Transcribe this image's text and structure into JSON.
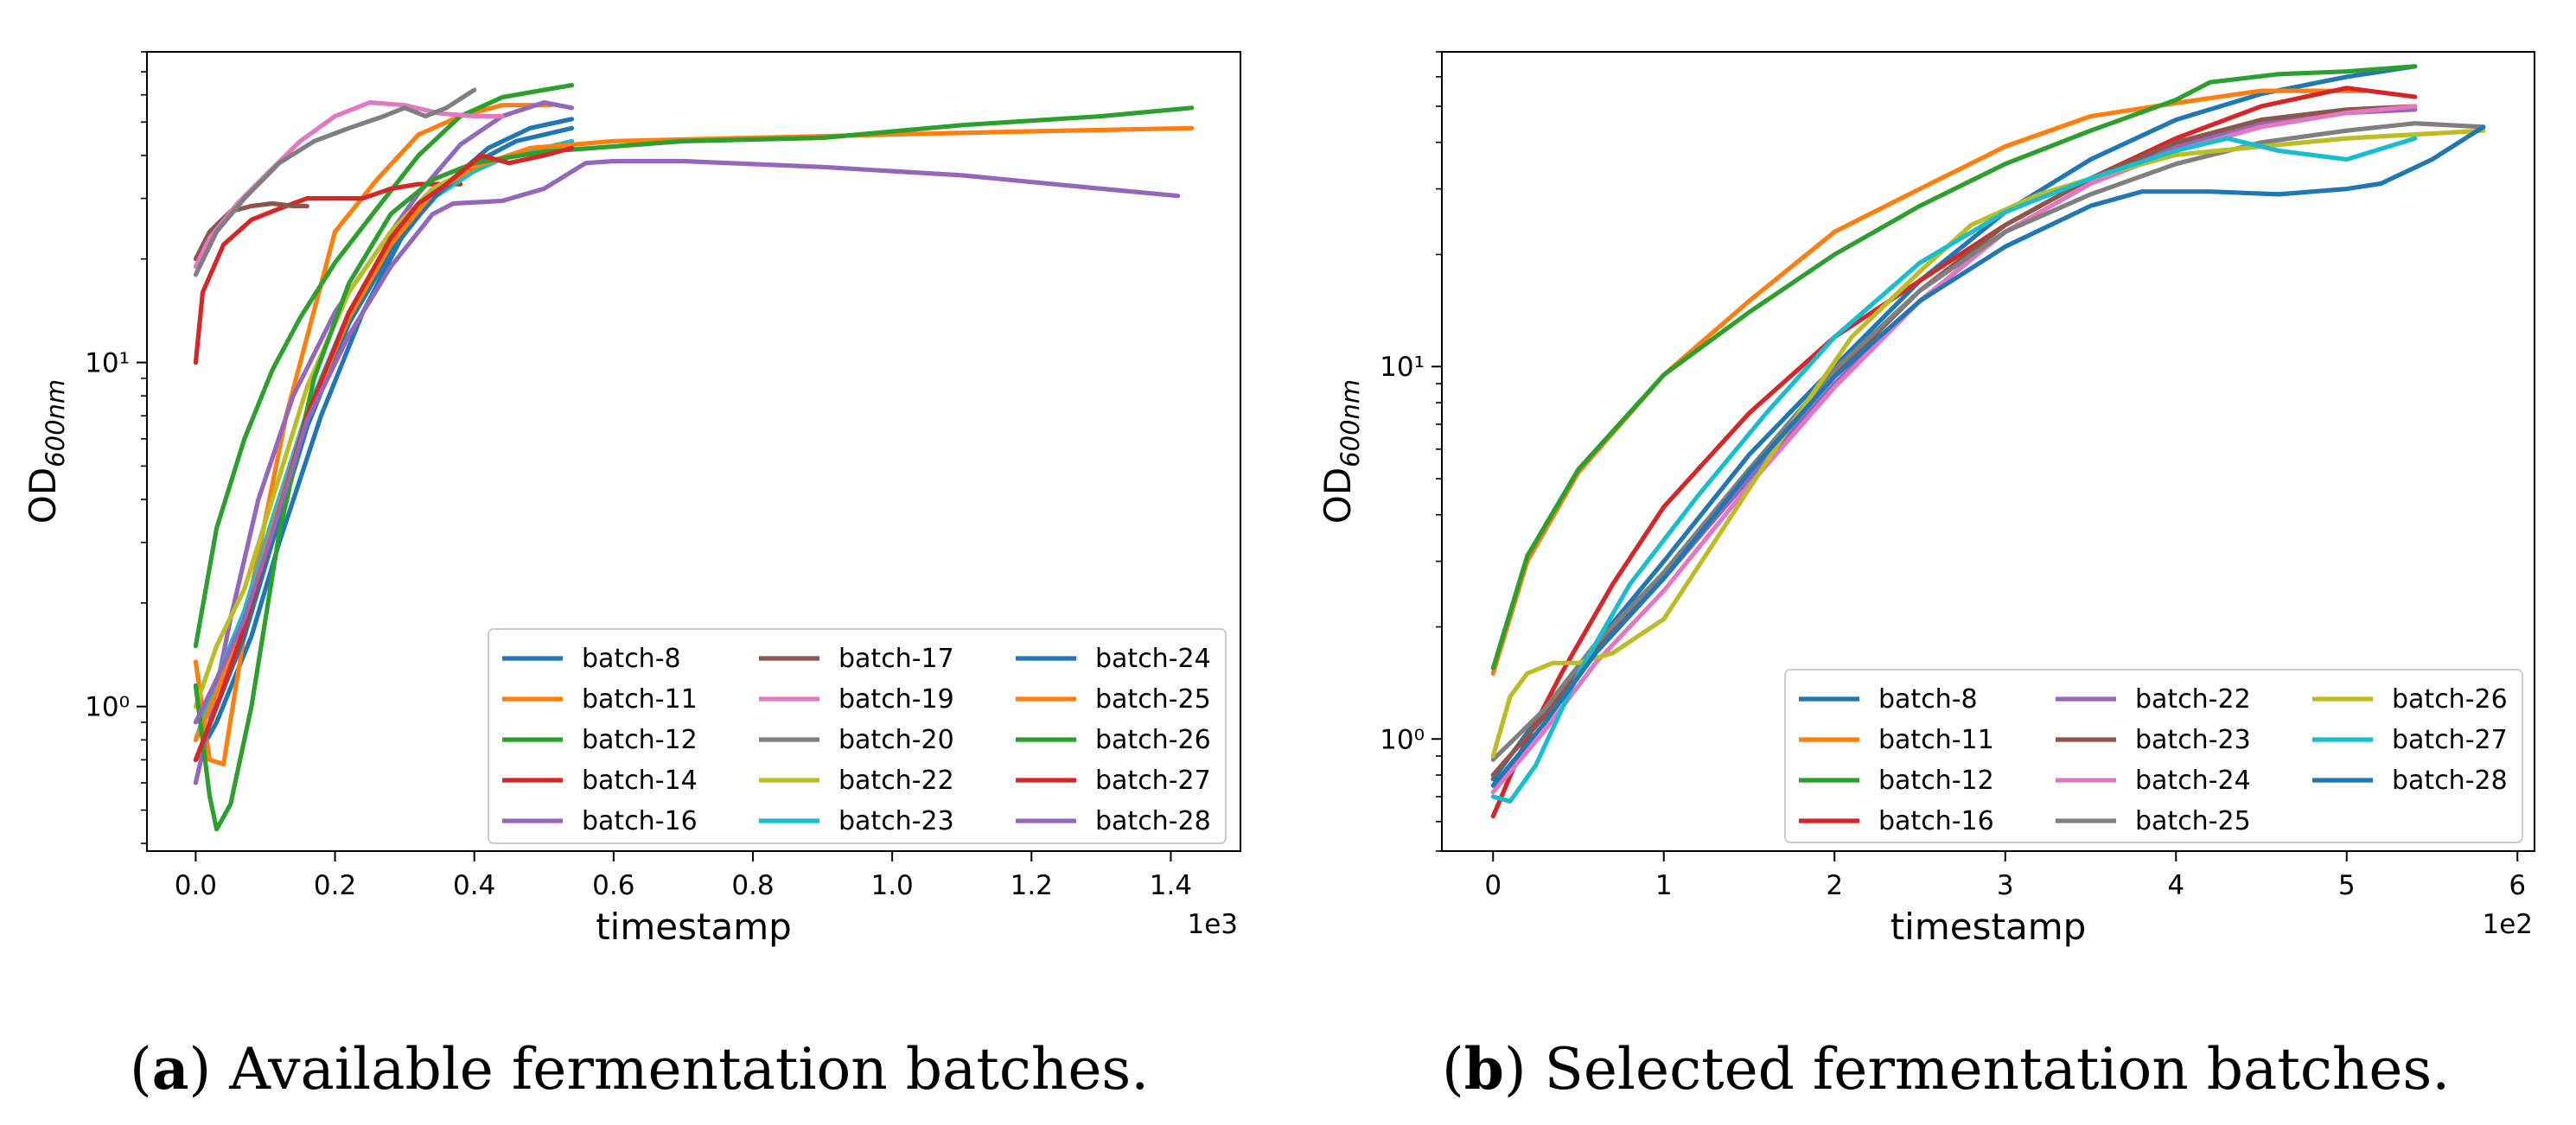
{
  "colors": {
    "blue": "#1f77b4",
    "orange": "#ff7f0e",
    "green": "#2ca02c",
    "red": "#d62728",
    "purple": "#9467bd",
    "brown": "#8c564b",
    "pink": "#e377c2",
    "gray": "#7f7f7f",
    "olive": "#bcbd22",
    "cyan": "#17becf"
  },
  "chart_data": [
    {
      "type": "line",
      "panel_letter": "a",
      "caption": "Available fermentation batches.",
      "caption_open": "(",
      "caption_close": ")",
      "xlabel": "timestamp",
      "ylabel_main": "OD",
      "ylabel_sub": "600nm",
      "x_offset_label": "1e3",
      "xlim": [
        -0.07,
        1.5
      ],
      "ylim": [
        0.38,
        80
      ],
      "yscale": "log",
      "x_ticks": [
        0.0,
        0.2,
        0.4,
        0.6,
        0.8,
        1.0,
        1.2,
        1.4
      ],
      "x_tick_labels": [
        "0.0",
        "0.2",
        "0.4",
        "0.6",
        "0.8",
        "1.0",
        "1.2",
        "1.4"
      ],
      "y_major_ticks": [
        1,
        10
      ],
      "y_tick_labels": [
        "10⁰",
        "10¹"
      ],
      "legend_position": "lower-right",
      "legend_columns": 3,
      "series": [
        {
          "name": "batch-8",
          "color": "#1f77b4",
          "x": [
            0,
            0.03,
            0.08,
            0.12,
            0.18,
            0.24,
            0.3,
            0.36,
            0.42,
            0.48,
            0.54
          ],
          "y": [
            0.7,
            0.9,
            1.6,
            3.0,
            7.0,
            14,
            24,
            33,
            42,
            48,
            51
          ]
        },
        {
          "name": "batch-11",
          "color": "#ff7f0e",
          "x": [
            0,
            0.02,
            0.04,
            0.08,
            0.13,
            0.2,
            0.26,
            0.32,
            0.38,
            0.44,
            0.51
          ],
          "y": [
            1.35,
            0.7,
            0.68,
            2.2,
            7.0,
            24,
            34,
            46,
            52,
            56,
            56
          ]
        },
        {
          "name": "batch-12",
          "color": "#2ca02c",
          "x": [
            0,
            0.03,
            0.07,
            0.11,
            0.15,
            0.2,
            0.26,
            0.32,
            0.38,
            0.44,
            0.5,
            0.54
          ],
          "y": [
            1.5,
            3.3,
            6.0,
            9.5,
            13.5,
            19.5,
            28,
            40,
            52,
            59,
            62,
            64
          ]
        },
        {
          "name": "batch-14",
          "color": "#d62728",
          "x": [
            0,
            0.01,
            0.04,
            0.08,
            0.12,
            0.16,
            0.2,
            0.24,
            0.28,
            0.32,
            0.38
          ],
          "y": [
            10,
            16,
            22,
            26,
            28,
            30,
            30,
            30,
            32,
            33,
            33
          ]
        },
        {
          "name": "batch-16",
          "color": "#9467bd",
          "x": [
            0,
            0.02,
            0.05,
            0.09,
            0.14,
            0.2,
            0.26,
            0.32,
            0.38,
            0.44,
            0.5,
            0.54
          ],
          "y": [
            0.6,
            0.9,
            1.8,
            4.0,
            8.0,
            14,
            21,
            31,
            43,
            52,
            57,
            55
          ]
        },
        {
          "name": "batch-17",
          "color": "#8c564b",
          "x": [
            0,
            0.02,
            0.05,
            0.08,
            0.11,
            0.14,
            0.16
          ],
          "y": [
            20,
            24,
            27.5,
            28.5,
            29,
            28.5,
            28.5
          ]
        },
        {
          "name": "batch-19",
          "color": "#e377c2",
          "x": [
            0.0,
            0.02,
            0.06,
            0.1,
            0.15,
            0.2,
            0.25,
            0.3,
            0.35,
            0.4,
            0.44
          ],
          "y": [
            19,
            23,
            29,
            35,
            44,
            52,
            57,
            56,
            53,
            52,
            52
          ]
        },
        {
          "name": "batch-20",
          "color": "#7f7f7f",
          "x": [
            0.0,
            0.03,
            0.07,
            0.12,
            0.17,
            0.22,
            0.27,
            0.3,
            0.33,
            0.36,
            0.4
          ],
          "y": [
            18,
            24,
            30,
            38,
            44,
            48,
            52,
            55,
            52,
            55,
            62
          ]
        },
        {
          "name": "batch-22",
          "color": "#bcbd22",
          "x": [
            0,
            0.03,
            0.07,
            0.11,
            0.16,
            0.22,
            0.28,
            0.34,
            0.4,
            0.45,
            0.5,
            0.54
          ],
          "y": [
            1.0,
            1.5,
            2.2,
            4.0,
            8.5,
            16,
            24,
            32,
            37,
            40,
            42,
            43
          ]
        },
        {
          "name": "batch-23",
          "color": "#17becf",
          "x": [
            0,
            0.03,
            0.07,
            0.11,
            0.16,
            0.22,
            0.28,
            0.34,
            0.4,
            0.45,
            0.5,
            0.54
          ],
          "y": [
            0.8,
            1.2,
            1.9,
            3.5,
            7.2,
            14,
            22,
            30,
            36,
            40,
            42,
            44
          ]
        },
        {
          "name": "batch-24",
          "color": "#1f77b4",
          "x": [
            0,
            0.03,
            0.07,
            0.11,
            0.16,
            0.22,
            0.28,
            0.34,
            0.4,
            0.46,
            0.54
          ],
          "y": [
            0.7,
            1.0,
            1.6,
            3.0,
            6.5,
            13,
            21,
            30,
            38,
            44,
            48
          ]
        },
        {
          "name": "batch-25",
          "color": "#ff7f0e",
          "x": [
            0,
            0.03,
            0.07,
            0.11,
            0.16,
            0.22,
            0.28,
            0.34,
            0.4,
            0.48,
            0.6,
            0.8,
            1.0,
            1.2,
            1.43
          ],
          "y": [
            0.8,
            1.1,
            1.8,
            3.3,
            7.0,
            13.5,
            22,
            31,
            37,
            42,
            44,
            45,
            46,
            47,
            48
          ]
        },
        {
          "name": "batch-26",
          "color": "#2ca02c",
          "x": [
            0,
            0.02,
            0.03,
            0.05,
            0.08,
            0.12,
            0.17,
            0.22,
            0.28,
            0.34,
            0.4,
            0.5,
            0.7,
            0.9,
            1.1,
            1.3,
            1.43
          ],
          "y": [
            1.15,
            0.55,
            0.44,
            0.52,
            1.0,
            3.2,
            9,
            17,
            27,
            34,
            38,
            41,
            44,
            45,
            49,
            52,
            55
          ]
        },
        {
          "name": "batch-27",
          "color": "#d62728",
          "x": [
            0,
            0.03,
            0.07,
            0.11,
            0.16,
            0.22,
            0.28,
            0.32,
            0.36,
            0.41,
            0.45,
            0.5,
            0.54
          ],
          "y": [
            0.7,
            1.0,
            1.7,
            3.2,
            7.0,
            14,
            23,
            29,
            33,
            40,
            38,
            40,
            42
          ]
        },
        {
          "name": "batch-28",
          "color": "#9467bd",
          "x": [
            0,
            0.03,
            0.07,
            0.11,
            0.16,
            0.22,
            0.28,
            0.34,
            0.37,
            0.44,
            0.5,
            0.56,
            0.6,
            0.7,
            0.9,
            1.1,
            1.3,
            1.41
          ],
          "y": [
            0.9,
            1.2,
            1.8,
            3.2,
            6.8,
            12,
            19,
            27,
            29,
            29.5,
            32,
            38,
            38.5,
            38.5,
            37,
            35,
            32,
            30.5
          ]
        }
      ]
    },
    {
      "type": "line",
      "panel_letter": "b",
      "caption": "Selected fermentation batches.",
      "caption_open": "(",
      "caption_close": ")",
      "xlabel": "timestamp",
      "ylabel_main": "OD",
      "ylabel_sub": "600nm",
      "x_offset_label": "1e2",
      "xlim": [
        -0.3,
        6.1
      ],
      "ylim": [
        0.5,
        70
      ],
      "yscale": "log",
      "x_ticks": [
        0,
        1,
        2,
        3,
        4,
        5,
        6
      ],
      "x_tick_labels": [
        "0",
        "1",
        "2",
        "3",
        "4",
        "5",
        "6"
      ],
      "y_major_ticks": [
        1,
        10
      ],
      "y_tick_labels": [
        "10⁰",
        "10¹"
      ],
      "legend_position": "lower-right",
      "legend_columns": 3,
      "series": [
        {
          "name": "batch-8",
          "color": "#1f77b4",
          "x": [
            0,
            0.3,
            0.6,
            1.0,
            1.5,
            2.0,
            2.5,
            3.0,
            3.5,
            4.0,
            4.5,
            5.0,
            5.4
          ],
          "y": [
            0.78,
            1.2,
            1.8,
            3.0,
            5.8,
            10,
            17,
            26,
            36,
            46,
            54,
            60,
            64
          ]
        },
        {
          "name": "batch-11",
          "color": "#ff7f0e",
          "x": [
            0,
            0.2,
            0.5,
            1.0,
            1.5,
            2.0,
            2.5,
            3.0,
            3.5,
            4.0,
            4.5,
            5.0,
            5.1
          ],
          "y": [
            1.5,
            3.0,
            5.2,
            9.5,
            15,
            23,
            30,
            39,
            47,
            51,
            55,
            55,
            55
          ]
        },
        {
          "name": "batch-12",
          "color": "#2ca02c",
          "x": [
            0,
            0.2,
            0.5,
            1.0,
            1.5,
            2.0,
            2.5,
            3.0,
            3.5,
            4.0,
            4.2,
            4.6,
            5.0,
            5.4
          ],
          "y": [
            1.55,
            3.1,
            5.3,
            9.5,
            14,
            20,
            27,
            35,
            43,
            52,
            58,
            61,
            62,
            64
          ]
        },
        {
          "name": "batch-16",
          "color": "#d62728",
          "x": [
            0,
            0.15,
            0.4,
            0.7,
            1.0,
            1.5,
            2.0,
            2.5,
            3.0,
            3.5,
            4.0,
            4.5,
            5.0,
            5.4
          ],
          "y": [
            0.62,
            0.9,
            1.5,
            2.6,
            4.2,
            7.5,
            12,
            17,
            24,
            32,
            41,
            50,
            56,
            53
          ]
        },
        {
          "name": "batch-22",
          "color": "#9467bd",
          "x": [
            0,
            0.3,
            0.6,
            1.0,
            1.5,
            2.0,
            2.5,
            3.0,
            3.5,
            4.0,
            4.5,
            5.0,
            5.4
          ],
          "y": [
            0.8,
            1.15,
            1.7,
            2.7,
            5.0,
            9,
            15,
            23,
            31,
            39,
            45,
            48,
            49
          ]
        },
        {
          "name": "batch-23",
          "color": "#8c564b",
          "x": [
            0,
            0.3,
            0.6,
            1.0,
            1.5,
            2.0,
            2.5,
            3.0,
            3.5,
            4.0,
            4.5,
            5.0,
            5.4
          ],
          "y": [
            0.8,
            1.15,
            1.75,
            2.8,
            5.3,
            9.5,
            16,
            24,
            32,
            40,
            46,
            49,
            50
          ]
        },
        {
          "name": "batch-24",
          "color": "#e377c2",
          "x": [
            0,
            0.3,
            0.6,
            1.0,
            1.5,
            2.0,
            2.5,
            3.0,
            3.5,
            4.0,
            4.5,
            5.0,
            5.4
          ],
          "y": [
            0.72,
            1.05,
            1.6,
            2.5,
            4.8,
            8.8,
            15,
            23,
            31,
            38,
            44,
            48,
            50
          ]
        },
        {
          "name": "batch-25",
          "color": "#7f7f7f",
          "x": [
            0,
            0.3,
            0.6,
            1.0,
            1.5,
            2.0,
            2.5,
            3.0,
            3.5,
            4.0,
            4.5,
            5.0,
            5.4,
            5.8
          ],
          "y": [
            0.88,
            1.2,
            1.8,
            2.8,
            5.3,
            9.8,
            16,
            23,
            29,
            35,
            40,
            43,
            45,
            44
          ]
        },
        {
          "name": "batch-26",
          "color": "#bcbd22",
          "x": [
            0,
            0.1,
            0.2,
            0.35,
            0.5,
            0.7,
            1.0,
            1.3,
            1.7,
            2.1,
            2.5,
            2.8,
            3.2,
            3.6,
            4.0,
            4.5,
            5.0,
            5.4,
            5.8
          ],
          "y": [
            0.9,
            1.3,
            1.5,
            1.6,
            1.6,
            1.7,
            2.1,
            3.4,
            6.5,
            12,
            18,
            24,
            29,
            33,
            37,
            39,
            41,
            42,
            43
          ]
        },
        {
          "name": "batch-27",
          "color": "#17becf",
          "x": [
            0,
            0.1,
            0.25,
            0.5,
            0.8,
            1.2,
            1.6,
            2.0,
            2.5,
            3.0,
            3.5,
            4.0,
            4.3,
            4.6,
            5.0,
            5.4
          ],
          "y": [
            0.7,
            0.68,
            0.85,
            1.5,
            2.6,
            4.5,
            7.5,
            12,
            19,
            26,
            32,
            38,
            41,
            38,
            36,
            41
          ]
        },
        {
          "name": "batch-28",
          "color": "#1f77b4",
          "x": [
            0,
            0.3,
            0.6,
            1.0,
            1.5,
            2.0,
            2.5,
            3.0,
            3.5,
            3.8,
            4.2,
            4.6,
            5.0,
            5.2,
            5.5,
            5.8
          ],
          "y": [
            0.75,
            1.1,
            1.7,
            2.7,
            5.2,
            9.4,
            15,
            21,
            27,
            29.5,
            29.5,
            29,
            30,
            31,
            36,
            44
          ]
        }
      ]
    }
  ]
}
